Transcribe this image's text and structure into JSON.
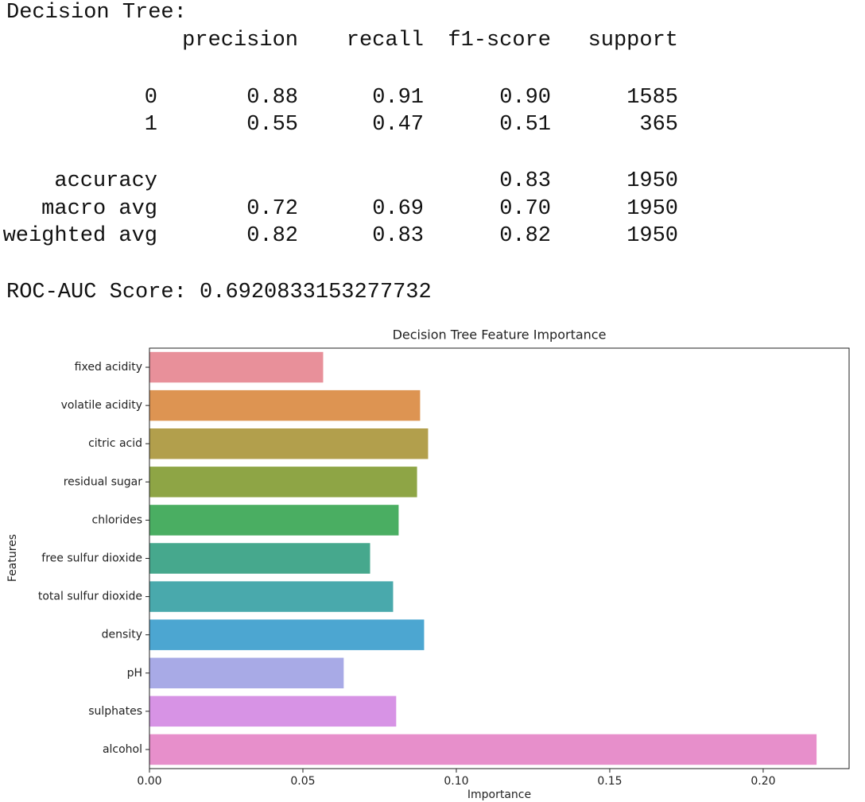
{
  "report": {
    "title": "Decision Tree:",
    "columns": [
      "precision",
      "recall",
      "f1-score",
      "support"
    ],
    "rows": [
      [
        "0",
        "0.88",
        "0.91",
        "0.90",
        "1585"
      ],
      [
        "1",
        "0.55",
        "0.47",
        "0.51",
        "365"
      ],
      [
        "accuracy",
        null,
        null,
        "0.83",
        "1950"
      ],
      [
        "macro avg",
        "0.72",
        "0.69",
        "0.70",
        "1950"
      ],
      [
        "weighted avg",
        "0.82",
        "0.83",
        "0.82",
        "1950"
      ]
    ],
    "roc_auc": "ROC-AUC Score: 0.6920833153277732"
  },
  "chart_data": {
    "type": "barh",
    "title": "Decision Tree Feature Importance",
    "x_label": "Importance",
    "y_label": "Features",
    "categories": [
      "fixed acidity",
      "volatile acidity",
      "citric acid",
      "residual sugar",
      "chlorides",
      "free sulfur dioxide",
      "total sulfur dioxide",
      "density",
      "pH",
      "sulphates",
      "alcohol"
    ],
    "values": [
      0.0566,
      0.0882,
      0.0908,
      0.0872,
      0.0812,
      0.0719,
      0.0794,
      0.0895,
      0.0633,
      0.0804,
      0.2174
    ],
    "colors": [
      "#e8909a",
      "#dd9452",
      "#b29f4c",
      "#8ea545",
      "#4aae62",
      "#46a88d",
      "#49a9ac",
      "#4ca6d1",
      "#a8aae6",
      "#d793e5",
      "#e78fcb"
    ],
    "xlim": [
      0,
      0.228
    ],
    "xticks": [
      {
        "value": 0,
        "label": "0.00"
      },
      {
        "value": 0.05,
        "label": "0.05"
      },
      {
        "value": 0.1,
        "label": "0.10"
      },
      {
        "value": 0.15,
        "label": "0.15"
      },
      {
        "value": 0.2,
        "label": "0.20"
      }
    ]
  }
}
